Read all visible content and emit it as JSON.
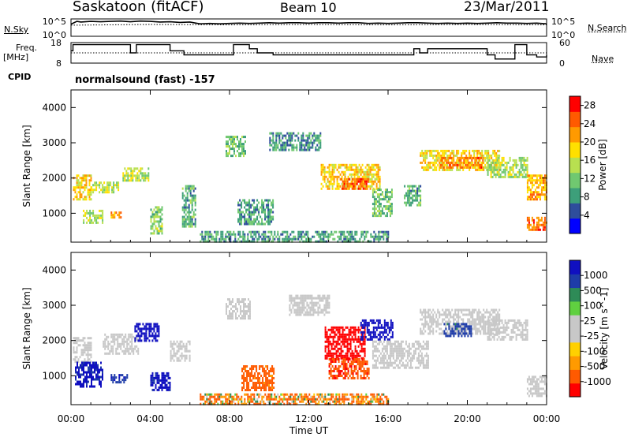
{
  "header": {
    "station": "Saskatoon (fitACF)",
    "beam": "Beam 10",
    "date": "23/Mar/2011"
  },
  "side_labels": {
    "nsky": "N.Sky",
    "freq_line1": "Freq.",
    "freq_line2": "[MHz]",
    "cpid": "CPID",
    "nsearch": "N.Search",
    "nave": "Nave"
  },
  "cpid_text": "normalsound (fast) -157",
  "colors": {
    "power_scale": [
      "#0000ff",
      "#2e4d9c",
      "#3d9f7a",
      "#70c870",
      "#b8e050",
      "#ffe000",
      "#ff9a00",
      "#ff5a00",
      "#ff0000"
    ],
    "velocity_scale": [
      "#ff0000",
      "#ff5a00",
      "#ff9a00",
      "#ffd000",
      "#c8c8c8",
      "#c8c8c8",
      "#60d040",
      "#2e8b57",
      "#1e3ca8",
      "#1010c0"
    ],
    "ground_scatter": "#c8c8c8"
  },
  "chart_data": [
    {
      "type": "line",
      "name": "noise-panel",
      "left_axis": {
        "label": "N.Sky",
        "ticks": [
          "10^5",
          "10^0"
        ]
      },
      "right_axis": {
        "label": "N.Search",
        "ticks": [
          "10^5",
          "10^0"
        ]
      },
      "x_range_hours": [
        0,
        24
      ],
      "series": [
        {
          "name": "N.Sky",
          "style": "solid",
          "x": [
            0,
            0.3,
            0.5,
            1,
            1.5,
            2,
            2.5,
            3,
            3.5,
            4,
            4.5,
            5,
            5.5,
            6,
            6.5,
            7,
            7.5,
            8,
            8.5,
            9,
            9.5,
            10,
            10.5,
            11,
            11.5,
            12,
            12.5,
            13,
            13.5,
            14,
            14.5,
            15,
            15.5,
            16,
            16.5,
            17,
            17.5,
            18,
            18.5,
            19,
            19.5,
            20,
            20.5,
            21,
            21.5,
            22,
            22.5,
            23,
            23.5,
            24
          ],
          "y": [
            3.5,
            4.3,
            4.1,
            4.3,
            4.2,
            4.3,
            4.4,
            4.2,
            4.4,
            4.3,
            4.1,
            4.2,
            4.0,
            4.1,
            3.6,
            3.7,
            3.6,
            3.7,
            3.8,
            3.7,
            3.8,
            3.9,
            3.8,
            3.9,
            3.9,
            3.8,
            3.9,
            3.9,
            3.8,
            3.9,
            3.9,
            3.7,
            3.8,
            3.7,
            3.8,
            3.9,
            3.9,
            3.8,
            3.7,
            3.8,
            3.7,
            3.8,
            3.7,
            3.8,
            3.9,
            3.8,
            3.8,
            3.7,
            3.8,
            3.6
          ]
        },
        {
          "name": "N.Search",
          "style": "dotted",
          "x": [
            0,
            4,
            8,
            12,
            16,
            20,
            24
          ],
          "y": [
            3.2,
            3.4,
            3.3,
            3.4,
            3.3,
            3.4,
            3.3
          ]
        }
      ]
    },
    {
      "type": "line",
      "name": "freq-nave-panel",
      "left_axis": {
        "label": "Freq. [MHz]",
        "ticks": [
          8,
          18
        ],
        "range": [
          8,
          18
        ]
      },
      "right_axis": {
        "label": "Nave",
        "ticks": [
          0,
          60
        ],
        "range": [
          0,
          60
        ]
      },
      "x_range_hours": [
        0,
        24
      ],
      "series": [
        {
          "name": "Freq.",
          "style": "step",
          "x": [
            0,
            0.1,
            0.4,
            2.2,
            2.4,
            3.0,
            3.3,
            4.5,
            5.0,
            5.4,
            5.7,
            8.0,
            8.2,
            8.5,
            9.0,
            9.4,
            9.7,
            10.2,
            11.0,
            12.6,
            13.0,
            17.0,
            17.3,
            17.6,
            18.0,
            20.8,
            21.0,
            21.4,
            22.1,
            22.4,
            23.0,
            23.5,
            24
          ],
          "y": [
            14,
            17,
            17,
            17,
            17,
            13,
            17,
            17,
            14,
            14,
            12,
            12,
            17,
            17,
            15,
            13,
            13,
            12,
            12,
            12,
            12,
            12,
            15,
            13,
            15,
            15,
            12,
            10,
            10,
            17,
            12,
            11,
            12
          ]
        },
        {
          "name": "Nave",
          "style": "dotted",
          "x": [
            0,
            24
          ],
          "y": [
            30,
            30
          ]
        }
      ]
    },
    {
      "type": "heatmap",
      "name": "power-panel",
      "ylabel": "Slant Range [km]",
      "yticks": [
        1000,
        2000,
        3000,
        4000
      ],
      "ylim": [
        180,
        4500
      ],
      "xlim_hours": [
        0,
        24
      ],
      "colorbar": {
        "label": "Power [dB]",
        "ticks": [
          4,
          8,
          12,
          16,
          20,
          24,
          28
        ],
        "range": [
          0,
          30
        ]
      },
      "patches": [
        {
          "t": [
            0.1,
            1.0
          ],
          "r": [
            1400,
            2100
          ],
          "v": 19
        },
        {
          "t": [
            0.6,
            1.6
          ],
          "r": [
            700,
            1100
          ],
          "v": 14
        },
        {
          "t": [
            1.0,
            2.4
          ],
          "r": [
            1600,
            1900
          ],
          "v": 16
        },
        {
          "t": [
            2.0,
            2.6
          ],
          "r": [
            850,
            1050
          ],
          "v": 22
        },
        {
          "t": [
            2.6,
            3.9
          ],
          "r": [
            1900,
            2300
          ],
          "v": 15
        },
        {
          "t": [
            4.0,
            4.6
          ],
          "r": [
            400,
            1200
          ],
          "v": 13
        },
        {
          "t": [
            5.6,
            6.3
          ],
          "r": [
            600,
            1800
          ],
          "v": 10
        },
        {
          "t": [
            7.8,
            8.8
          ],
          "r": [
            2600,
            3200
          ],
          "v": 11
        },
        {
          "t": [
            8.4,
            10.2
          ],
          "r": [
            700,
            1400
          ],
          "v": 9
        },
        {
          "t": [
            10.0,
            12.6
          ],
          "r": [
            2800,
            3300
          ],
          "v": 8
        },
        {
          "t": [
            12.6,
            15.6
          ],
          "r": [
            1700,
            2400
          ],
          "v": 19
        },
        {
          "t": [
            13.6,
            15.0
          ],
          "r": [
            1700,
            2000
          ],
          "v": 26
        },
        {
          "t": [
            15.2,
            16.2
          ],
          "r": [
            900,
            1700
          ],
          "v": 11
        },
        {
          "t": [
            16.8,
            17.6
          ],
          "r": [
            1200,
            1800
          ],
          "v": 10
        },
        {
          "t": [
            17.6,
            21.6
          ],
          "r": [
            2200,
            2800
          ],
          "v": 18
        },
        {
          "t": [
            18.6,
            20.8
          ],
          "r": [
            2300,
            2600
          ],
          "v": 23
        },
        {
          "t": [
            21.0,
            23.0
          ],
          "r": [
            2000,
            2600
          ],
          "v": 14
        },
        {
          "t": [
            23.0,
            24.0
          ],
          "r": [
            1400,
            2100
          ],
          "v": 21
        },
        {
          "t": [
            23.0,
            24.0
          ],
          "r": [
            500,
            900
          ],
          "v": 24
        },
        {
          "t": [
            6.5,
            16.0
          ],
          "r": [
            180,
            500
          ],
          "v": 9
        }
      ]
    },
    {
      "type": "heatmap",
      "name": "velocity-panel",
      "ylabel": "Slant Range [km]",
      "yticks": [
        1000,
        2000,
        3000,
        4000
      ],
      "ylim": [
        180,
        4500
      ],
      "xlim_hours": [
        0,
        24
      ],
      "colorbar": {
        "label": "Velocity [m s^-1]",
        "ticks": [
          1000,
          500,
          100,
          25,
          -25,
          -100,
          -500,
          -1000
        ]
      },
      "patches": [
        {
          "t": [
            0.1,
            1.0
          ],
          "r": [
            1400,
            2100
          ],
          "v": 100,
          "g": true
        },
        {
          "t": [
            0.2,
            1.6
          ],
          "r": [
            700,
            1400
          ],
          "v": 300
        },
        {
          "t": [
            1.6,
            3.4
          ],
          "r": [
            1600,
            2200
          ],
          "v": 0,
          "g": true
        },
        {
          "t": [
            2.0,
            2.8
          ],
          "r": [
            800,
            1050
          ],
          "v": 200
        },
        {
          "t": [
            3.2,
            4.4
          ],
          "r": [
            2000,
            2500
          ],
          "v": 800
        },
        {
          "t": [
            4.0,
            5.0
          ],
          "r": [
            600,
            1100
          ],
          "v": 300
        },
        {
          "t": [
            5.0,
            6.0
          ],
          "r": [
            1400,
            2000
          ],
          "v": 0,
          "g": true
        },
        {
          "t": [
            7.8,
            9.0
          ],
          "r": [
            2600,
            3200
          ],
          "v": 0,
          "g": true
        },
        {
          "t": [
            8.6,
            10.2
          ],
          "r": [
            600,
            1300
          ],
          "v": -150
        },
        {
          "t": [
            11.0,
            13.0
          ],
          "r": [
            2700,
            3300
          ],
          "v": 0,
          "g": true
        },
        {
          "t": [
            12.8,
            14.8
          ],
          "r": [
            1500,
            2400
          ],
          "v": -700
        },
        {
          "t": [
            14.6,
            16.2
          ],
          "r": [
            2000,
            2600
          ],
          "v": 900
        },
        {
          "t": [
            13.0,
            15.0
          ],
          "r": [
            900,
            1500
          ],
          "v": -200
        },
        {
          "t": [
            15.2,
            18.0
          ],
          "r": [
            1200,
            2000
          ],
          "v": 0,
          "g": true
        },
        {
          "t": [
            17.6,
            21.6
          ],
          "r": [
            2200,
            2900
          ],
          "v": 0,
          "g": true
        },
        {
          "t": [
            18.8,
            20.2
          ],
          "r": [
            2100,
            2500
          ],
          "v": 150
        },
        {
          "t": [
            21.0,
            23.0
          ],
          "r": [
            2000,
            2600
          ],
          "v": 0,
          "g": true
        },
        {
          "t": [
            23.0,
            24.0
          ],
          "r": [
            400,
            1000
          ],
          "v": 0,
          "g": true
        },
        {
          "t": [
            6.5,
            16.0
          ],
          "r": [
            180,
            500
          ],
          "v": -60
        }
      ]
    }
  ],
  "x_axis": {
    "label": "Time UT",
    "ticks": [
      "00:00",
      "04:00",
      "08:00",
      "12:00",
      "16:00",
      "20:00",
      "00:00"
    ]
  }
}
